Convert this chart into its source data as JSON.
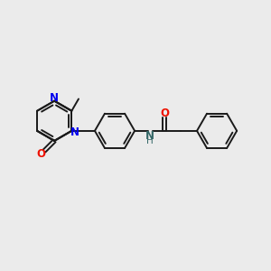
{
  "bg_color": "#ebebeb",
  "bond_color": "#1a1a1a",
  "N_color": "#0000ee",
  "O_color": "#ee1100",
  "NH_color": "#336666",
  "lw": 1.4,
  "figsize": [
    3.0,
    3.0
  ],
  "dpi": 100,
  "xlim": [
    0,
    10
  ],
  "ylim": [
    0,
    10
  ]
}
